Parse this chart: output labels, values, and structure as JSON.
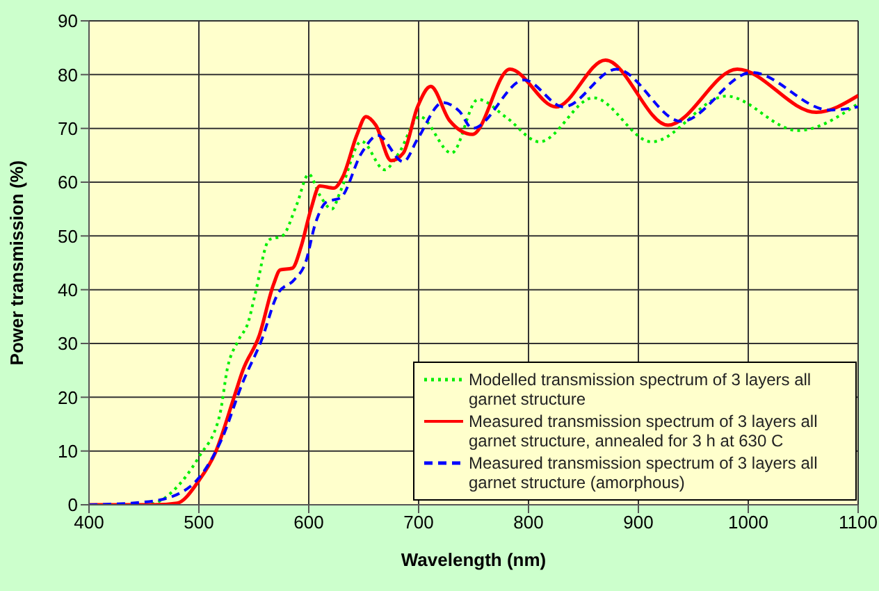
{
  "chart_data": {
    "type": "line",
    "xlabel": "Wavelength (nm)",
    "ylabel": "Power transmission (%)",
    "xlim": [
      400,
      1100
    ],
    "xticks": [
      400,
      500,
      600,
      700,
      800,
      900,
      1000,
      1100
    ],
    "ylim": [
      0,
      90
    ],
    "yticks": [
      0,
      10,
      20,
      30,
      40,
      50,
      60,
      70,
      80,
      90
    ],
    "grid": true,
    "legend": "bottom right",
    "marker": "none",
    "series": [
      {
        "name": "Modelled transmission spectrum of 3 layers all garnet structure",
        "color": "#00ee00",
        "line_style": "dotted",
        "x": [
          400,
          450,
          460,
          475,
          500,
          519,
          526,
          536,
          545,
          551,
          564,
          576,
          589,
          600,
          610,
          621,
          629,
          648,
          669,
          682,
          701,
          730,
          754,
          780,
          810,
          859,
          912,
          980,
          1045,
          1100
        ],
        "values": [
          0,
          0,
          0.3,
          2.3,
          8.9,
          16.7,
          25.4,
          30.6,
          34,
          39,
          49.3,
          50,
          55.8,
          61.5,
          57.6,
          55,
          58.4,
          67.6,
          62.3,
          65.4,
          72.2,
          65.4,
          75.4,
          72,
          67.5,
          75.7,
          67.5,
          76,
          69.6,
          74.6
        ]
      },
      {
        "name": "Measured transmission spectrum of 3 layers all garnet structure, annealed for 3 h at 630 C",
        "color": "#ff0000",
        "line_style": "solid",
        "x": [
          400,
          460,
          480,
          500,
          515,
          532,
          540,
          555,
          568,
          574,
          585,
          593,
          602,
          610,
          623,
          631,
          644,
          652,
          661,
          675,
          686,
          699,
          711,
          728,
          749,
          783,
          825,
          870,
          927,
          990,
          1062,
          1100
        ],
        "values": [
          0,
          0,
          0.3,
          4.5,
          9.7,
          20,
          25,
          31.5,
          41,
          43.7,
          44,
          48,
          55,
          59.3,
          58.9,
          61,
          68.9,
          72.2,
          70.6,
          64,
          65.4,
          74,
          77.8,
          71.5,
          68.9,
          81,
          74,
          82.7,
          70.6,
          81,
          73,
          76.1
        ]
      },
      {
        "name": "Measured transmission spectrum of 3 layers all garnet structure (amorphous)",
        "color": "#0000ff",
        "line_style": "dashed",
        "x": [
          400,
          450,
          480,
          500,
          521,
          540,
          557,
          572,
          587,
          597,
          606,
          616,
          629,
          648,
          663,
          686,
          699,
          722,
          737,
          749,
          796,
          832,
          880,
          939,
          1003,
          1074,
          1100
        ],
        "values": [
          0,
          0.5,
          1.9,
          5,
          12.3,
          22.8,
          30.6,
          39.3,
          41.9,
          45,
          52.3,
          56.3,
          57.1,
          65.4,
          68.7,
          63.8,
          68,
          74.8,
          73.2,
          70,
          79,
          74,
          81,
          71.3,
          80.4,
          73.4,
          74
        ]
      }
    ]
  }
}
